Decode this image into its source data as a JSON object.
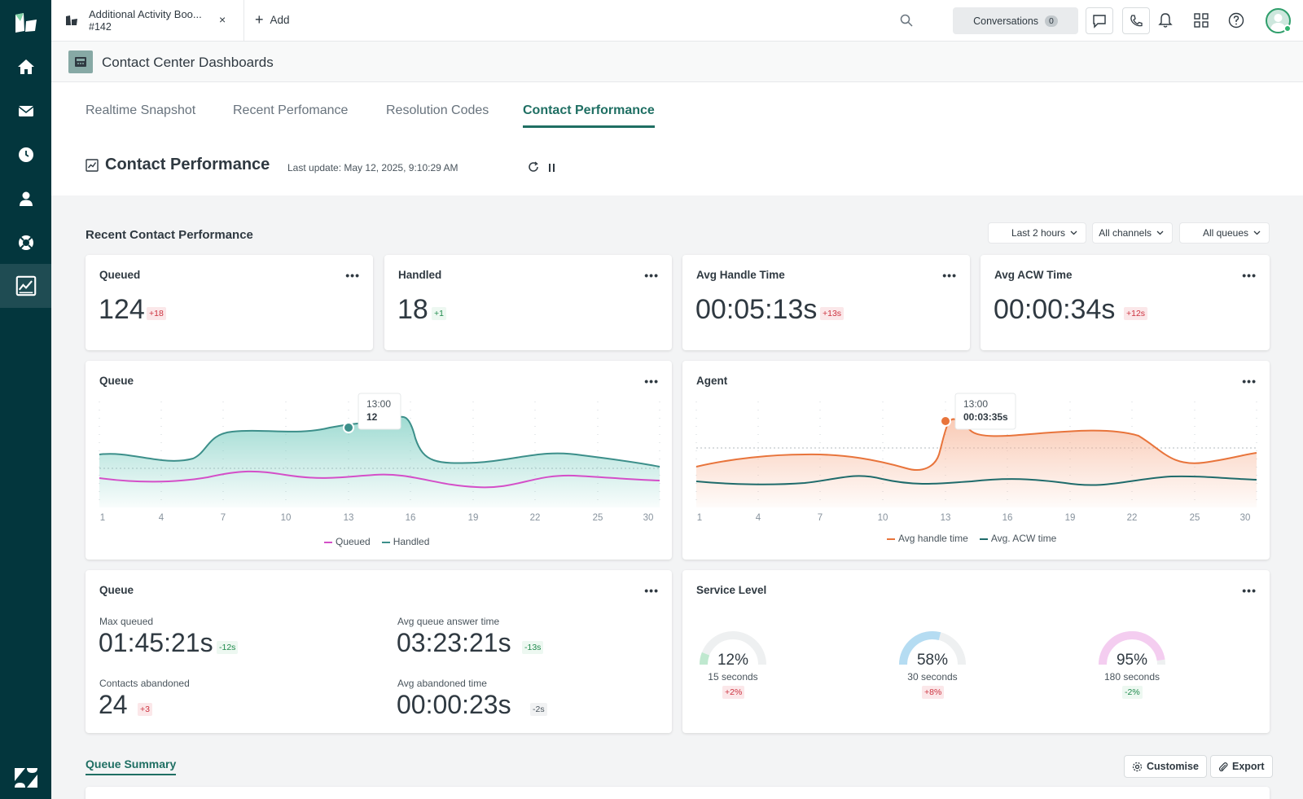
{
  "topbar": {
    "ticket_tab": {
      "title": "Additional Activity Boo...",
      "subtitle": "#142",
      "close": "×"
    },
    "add_label": "Add",
    "conversations_label": "Conversations",
    "conversations_count": "0"
  },
  "app": {
    "title": "Contact Center Dashboards"
  },
  "nav": {
    "tabs": [
      "Realtime Snapshot",
      "Recent Perfomance",
      "Resolution Codes",
      "Contact Performance"
    ],
    "active_tab": "Contact Performance"
  },
  "page": {
    "title": "Contact Performance",
    "last_update": "Last update: May 12, 2025, 9:10:29 AM"
  },
  "section": {
    "title": "Recent Contact Performance",
    "filters": [
      "Last 2 hours",
      "All channels",
      "All queues"
    ]
  },
  "kpis": [
    {
      "title": "Queued",
      "value": "124",
      "delta": "+18",
      "delta_color": "red"
    },
    {
      "title": "Handled",
      "value": "18",
      "delta": "+1",
      "delta_color": "green"
    },
    {
      "title": "Avg Handle Time",
      "value": "00:05:13s",
      "delta": "+13s",
      "delta_color": "red"
    },
    {
      "title": "Avg ACW Time",
      "value": "00:00:34s",
      "delta": "+12s",
      "delta_color": "red"
    }
  ],
  "menu_label": "•••",
  "queue_chart": {
    "title": "Queue",
    "x_ticks": [
      "1",
      "4",
      "7",
      "10",
      "13",
      "16",
      "19",
      "22",
      "25",
      "30"
    ],
    "tooltip_time": "13:00",
    "tooltip_value": "12",
    "legend": [
      "Queued",
      "Handled"
    ],
    "colors": {
      "queued": "#d44fc8",
      "handled": "#3c8f8a"
    }
  },
  "agent_chart": {
    "title": "Agent",
    "x_ticks": [
      "1",
      "4",
      "7",
      "10",
      "13",
      "16",
      "19",
      "22",
      "25",
      "30"
    ],
    "tooltip_time": "13:00",
    "tooltip_value": "00:03:35s",
    "legend": [
      "Avg handle time",
      "Avg. ACW time"
    ],
    "colors": {
      "handle": "#e8743b",
      "acw": "#1f6b6b"
    }
  },
  "queue_stats": {
    "title": "Queue",
    "items": [
      {
        "label": "Max queued",
        "value": "01:45:21s",
        "delta": "-12s",
        "delta_color": "green"
      },
      {
        "label": "Avg queue answer time",
        "value": "03:23:21s",
        "delta": "-13s",
        "delta_color": "green"
      },
      {
        "label": "Contacts abandoned",
        "value": "24",
        "delta": "+3",
        "delta_color": "red"
      },
      {
        "label": "Avg abandoned time",
        "value": "00:00:23s",
        "delta": "-2s",
        "delta_color": "grey"
      }
    ]
  },
  "service_level": {
    "title": "Service Level",
    "gauges": [
      {
        "value": "12%",
        "percent": 12,
        "label": "15 seconds",
        "delta": "+2%",
        "delta_color": "red",
        "color": "#bfe8cf"
      },
      {
        "value": "58%",
        "percent": 58,
        "label": "30 seconds",
        "delta": "+8%",
        "delta_color": "red",
        "color": "#b5dcf2"
      },
      {
        "value": "95%",
        "percent": 95,
        "label": "180 seconds",
        "delta": "-2%",
        "delta_color": "green",
        "color": "#f4cdf0"
      }
    ]
  },
  "footer": {
    "queue_summary": "Queue Summary",
    "customise": "Customise",
    "export": "Export"
  }
}
